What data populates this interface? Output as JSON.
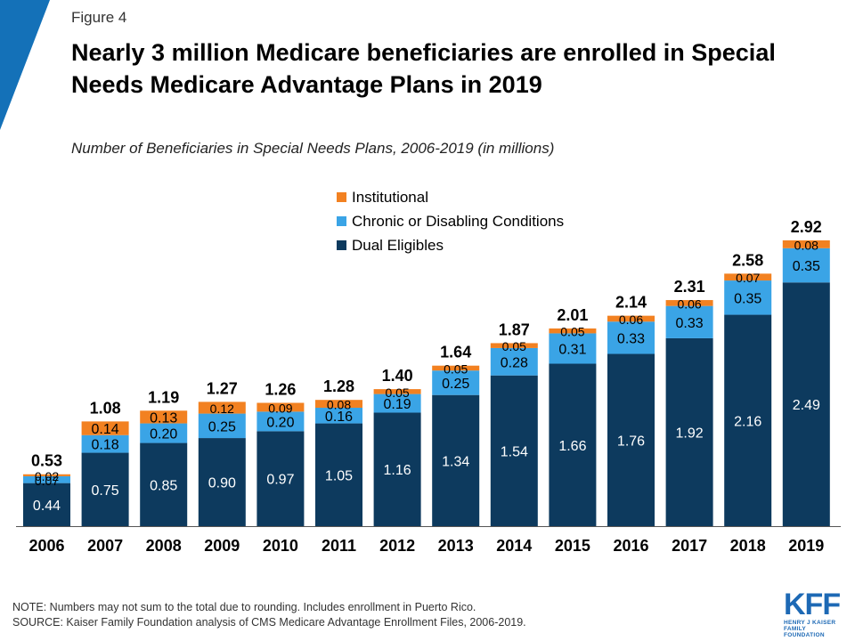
{
  "figure_label": "Figure 4",
  "title": "Nearly 3 million Medicare beneficiaries are enrolled in Special Needs Medicare Advantage Plans in 2019",
  "note": "NOTE: Numbers may not sum to the total due to rounding. Includes enrollment in Puerto Rico.",
  "source": "SOURCE: Kaiser Family Foundation analysis of CMS Medicare Advantage Enrollment Files, 2006-2019.",
  "logo": {
    "main": "KFF",
    "line1": "HENRY J KAISER",
    "line2": "FAMILY FOUNDATION"
  },
  "colors": {
    "dual": "#0d3a5e",
    "chronic": "#3aa4e6",
    "institutional": "#f28121",
    "corner": "#1471b8"
  },
  "chart_data": {
    "type": "bar",
    "stacked": true,
    "subtitle": "Number of Beneficiaries in Special Needs Plans, 2006-2019 (in millions)",
    "categories": [
      "2006",
      "2007",
      "2008",
      "2009",
      "2010",
      "2011",
      "2012",
      "2013",
      "2014",
      "2015",
      "2016",
      "2017",
      "2018",
      "2019"
    ],
    "series": [
      {
        "name": "Dual Eligibles",
        "values": [
          0.44,
          0.75,
          0.85,
          0.9,
          0.97,
          1.05,
          1.16,
          1.34,
          1.54,
          1.66,
          1.76,
          1.92,
          2.16,
          2.49
        ]
      },
      {
        "name": "Chronic or Disabling Conditions",
        "values": [
          0.07,
          0.18,
          0.2,
          0.25,
          0.2,
          0.16,
          0.19,
          0.25,
          0.28,
          0.31,
          0.33,
          0.33,
          0.35,
          0.35
        ]
      },
      {
        "name": "Institutional",
        "values": [
          0.02,
          0.14,
          0.13,
          0.12,
          0.09,
          0.08,
          0.05,
          0.05,
          0.05,
          0.05,
          0.06,
          0.06,
          0.07,
          0.08
        ]
      }
    ],
    "totals": [
      0.53,
      1.08,
      1.19,
      1.27,
      1.26,
      1.28,
      1.4,
      1.64,
      1.87,
      2.01,
      2.14,
      2.31,
      2.58,
      2.92
    ],
    "legend_order": [
      "Institutional",
      "Chronic or Disabling Conditions",
      "Dual Eligibles"
    ],
    "legend_position": "top-center",
    "ylim": [
      0,
      2.92
    ],
    "grid": false,
    "yaxis_visible": false
  }
}
